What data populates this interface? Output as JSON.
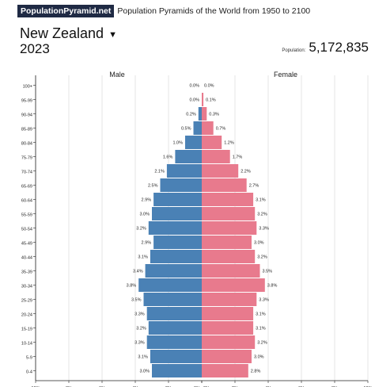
{
  "header": {
    "brand": "PopulationPyramid.net",
    "tagline": "Population Pyramids of the World from 1950 to 2100"
  },
  "country": "New Zealand",
  "caret_icon": "caret-down-icon",
  "year": "2023",
  "population": {
    "label": "Population:",
    "value": "5,172,835"
  },
  "colors": {
    "male": "#4a81b5",
    "female": "#e87a8d"
  },
  "chart_data": {
    "type": "bar",
    "orientation": "horizontal-pyramid",
    "series_labels": {
      "male": "Male",
      "female": "Female"
    },
    "categories": [
      "100+",
      "95-99",
      "90-94",
      "85-89",
      "80-84",
      "75-79",
      "70-74",
      "65-69",
      "60-64",
      "55-59",
      "50-54",
      "45-49",
      "40-44",
      "35-39",
      "30-34",
      "25-29",
      "20-24",
      "15-19",
      "10-14",
      "5-9",
      "0-4"
    ],
    "series": [
      {
        "name": "Male",
        "values": [
          0.0,
          0.0,
          0.2,
          0.5,
          1.0,
          1.6,
          2.1,
          2.5,
          2.9,
          3.0,
          3.2,
          2.9,
          3.1,
          3.4,
          3.8,
          3.5,
          3.3,
          3.2,
          3.3,
          3.1,
          3.0
        ],
        "labels": [
          "0.0%",
          "0.0%",
          "0.2%",
          "0.5%",
          "1.0%",
          "1.6%",
          "2.1%",
          "2.5%",
          "2.9%",
          "3.0%",
          "3.2%",
          "2.9%",
          "3.1%",
          "3.4%",
          "3.8%",
          "3.5%",
          "3.3%",
          "3.2%",
          "3.3%",
          "3.1%",
          "3.0%"
        ]
      },
      {
        "name": "Female",
        "values": [
          0.0,
          0.1,
          0.3,
          0.7,
          1.2,
          1.7,
          2.2,
          2.7,
          3.1,
          3.2,
          3.3,
          3.0,
          3.2,
          3.5,
          3.8,
          3.3,
          3.1,
          3.1,
          3.2,
          3.0,
          2.8
        ],
        "labels": [
          "0.0%",
          "0.1%",
          "0.3%",
          "0.7%",
          "1.2%",
          "1.7%",
          "2.2%",
          "2.7%",
          "3.1%",
          "3.2%",
          "3.3%",
          "3.0%",
          "3.2%",
          "3.5%",
          "3.8%",
          "3.3%",
          "3.1%",
          "3.1%",
          "3.2%",
          "3.0%",
          "2.8%"
        ]
      }
    ],
    "xticks": [
      "10%",
      "8%",
      "6%",
      "4%",
      "2%",
      "0%",
      "0%",
      "2%",
      "4%",
      "6%",
      "8%",
      "10%"
    ],
    "xlim": [
      0,
      10
    ],
    "grid": "vertical"
  }
}
